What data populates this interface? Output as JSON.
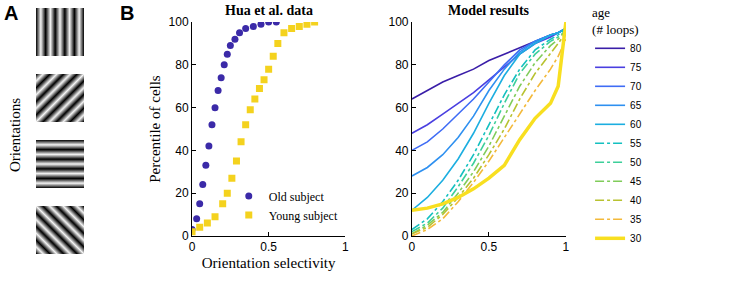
{
  "figure": {
    "panel_labels": [
      "A",
      "B"
    ],
    "side_label": "Orientations"
  },
  "chart_data": [
    {
      "type": "scatter",
      "title": "Hua et al. data",
      "x_label": "Orientation selectivity",
      "y_label": "Percentile of cells",
      "xlim": [
        0,
        1
      ],
      "ylim": [
        0,
        100
      ],
      "xticks": [
        0,
        0.5,
        1
      ],
      "yticks": [
        0,
        20,
        40,
        60,
        80,
        100
      ],
      "legend": "lower right",
      "series": [
        {
          "name": "Old subject",
          "color": "#3b2aa8",
          "marker": "circle",
          "x": [
            0,
            0.03,
            0.05,
            0.07,
            0.09,
            0.11,
            0.13,
            0.15,
            0.17,
            0.19,
            0.21,
            0.23,
            0.25,
            0.28,
            0.31,
            0.35,
            0.4,
            0.45,
            0.5,
            0.55
          ],
          "values": [
            3,
            8,
            15,
            24,
            33,
            42,
            52,
            60,
            68,
            74,
            80,
            85,
            89,
            92,
            95,
            97,
            98,
            99,
            100,
            100
          ]
        },
        {
          "name": "Young subject",
          "color": "#f4d21e",
          "marker": "square",
          "x": [
            0,
            0.05,
            0.1,
            0.15,
            0.2,
            0.23,
            0.26,
            0.29,
            0.32,
            0.35,
            0.38,
            0.41,
            0.44,
            0.47,
            0.5,
            0.53,
            0.56,
            0.6,
            0.65,
            0.7,
            0.75,
            0.8
          ],
          "values": [
            2,
            4,
            6,
            9,
            15,
            20,
            27,
            35,
            44,
            52,
            59,
            64,
            69,
            73,
            78,
            84,
            90,
            95,
            97,
            98,
            99,
            100
          ]
        }
      ]
    },
    {
      "type": "line",
      "title": "Model results",
      "legend_title": [
        "age",
        "(# loops)"
      ],
      "xlim": [
        0,
        1
      ],
      "ylim": [
        0,
        100
      ],
      "xticks": [
        0,
        0.5,
        1
      ],
      "yticks": [
        0,
        20,
        40,
        60,
        80,
        100
      ],
      "legend": "outside right",
      "x": [
        0,
        0.1,
        0.2,
        0.3,
        0.4,
        0.5,
        0.6,
        0.7,
        0.8,
        0.9,
        0.95,
        1
      ],
      "series": [
        {
          "name": "80",
          "color": "#3a1ea8",
          "line_style": "solid",
          "values": [
            64,
            68,
            72,
            75,
            78,
            82,
            85,
            88,
            91,
            94,
            95,
            97
          ]
        },
        {
          "name": "75",
          "color": "#4a3fe0",
          "line_style": "solid",
          "values": [
            48,
            52,
            57,
            62,
            67,
            73,
            79,
            85,
            90,
            93,
            95,
            97
          ]
        },
        {
          "name": "70",
          "color": "#3f6cf5",
          "line_style": "solid",
          "values": [
            40,
            44,
            50,
            57,
            64,
            72,
            80,
            87,
            91,
            94,
            95,
            97
          ]
        },
        {
          "name": "65",
          "color": "#2e90f0",
          "line_style": "solid",
          "values": [
            28,
            32,
            38,
            46,
            56,
            68,
            78,
            86,
            91,
            94,
            95,
            97
          ]
        },
        {
          "name": "60",
          "color": "#1caee0",
          "line_style": "solid",
          "values": [
            12,
            18,
            26,
            36,
            48,
            62,
            75,
            85,
            90,
            94,
            95,
            97
          ]
        },
        {
          "name": "55",
          "color": "#14c0c0",
          "line_style": "dashdot",
          "values": [
            3,
            8,
            16,
            26,
            38,
            52,
            66,
            78,
            87,
            92,
            94,
            97
          ]
        },
        {
          "name": "50",
          "color": "#3ccf9a",
          "line_style": "dashdot",
          "values": [
            2,
            6,
            13,
            23,
            34,
            47,
            62,
            76,
            85,
            91,
            93,
            96
          ]
        },
        {
          "name": "45",
          "color": "#80cc5a",
          "line_style": "dashdot",
          "values": [
            1,
            5,
            11,
            20,
            30,
            42,
            56,
            70,
            81,
            89,
            92,
            96
          ]
        },
        {
          "name": "40",
          "color": "#b8c230",
          "line_style": "dashdot",
          "values": [
            1,
            4,
            10,
            18,
            27,
            38,
            50,
            64,
            76,
            85,
            90,
            95
          ]
        },
        {
          "name": "35",
          "color": "#f3b93a",
          "line_style": "dashdot",
          "values": [
            0,
            3,
            8,
            16,
            25,
            35,
            46,
            57,
            68,
            78,
            84,
            92
          ]
        },
        {
          "name": "30",
          "color": "#f8df20",
          "line_style": "bold",
          "values": [
            12,
            13,
            15,
            18,
            22,
            27,
            33,
            45,
            55,
            62,
            70,
            100
          ]
        }
      ]
    }
  ]
}
